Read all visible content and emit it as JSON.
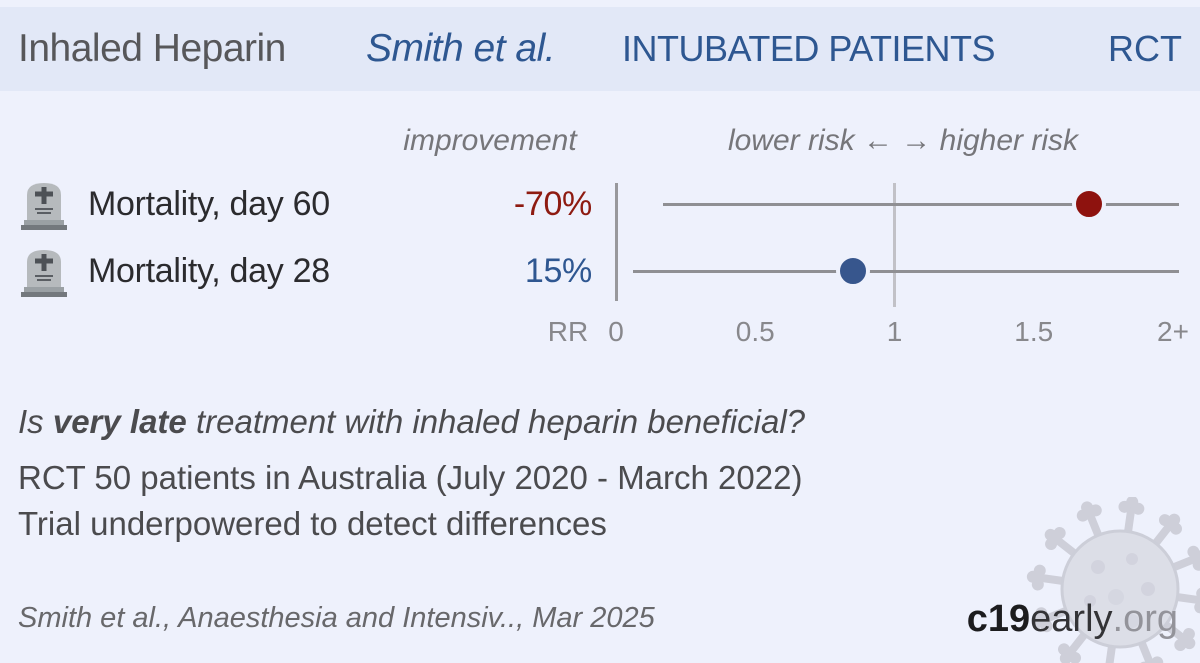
{
  "header": {
    "treatment": "Inhaled Heparin",
    "study": "Smith et al.",
    "population": "INTUBATED PATIENTS",
    "design": "RCT"
  },
  "columns": {
    "improvement": "improvement",
    "risk_direction": "lower risk ← → higher risk"
  },
  "axis": {
    "label": "RR",
    "ticks": [
      "0",
      "0.5",
      "1",
      "1.5",
      "2+"
    ]
  },
  "outcomes": [
    {
      "icon": "tombstone-icon",
      "label": "Mortality, day 60",
      "improvement": "-70%"
    },
    {
      "icon": "tombstone-icon",
      "label": "Mortality, day 28",
      "improvement": "15%"
    }
  ],
  "summary": {
    "question_prefix": "Is ",
    "question_bold": "very late",
    "question_suffix": " treatment with inhaled heparin beneficial?",
    "detail_1": "RCT 50 patients in Australia (July 2020 - March 2022)",
    "detail_2": "Trial underpowered to detect differences"
  },
  "footer": {
    "citation": "Smith et al., Anaesthesia and Intensiv.., Mar 2025",
    "brand_bold": "c19",
    "brand_regular": "early",
    "brand_suffix": ".org"
  },
  "colors": {
    "risk_increase": "#8e120e",
    "risk_decrease": "#37568d",
    "accent_blue": "#2e5791",
    "header_bg": "#e2e8f7",
    "page_bg": "#eef1fc"
  },
  "chart_data": {
    "type": "scatter",
    "subtype": "forest-plot",
    "title": "Inhaled Heparin — Smith et al. — INTUBATED PATIENTS — RCT",
    "categories": [
      "Mortality, day 60",
      "Mortality, day 28"
    ],
    "series": [
      {
        "name": "Relative Risk",
        "values": [
          1.7,
          0.85
        ]
      }
    ],
    "improvement_values": [
      "-70%",
      "15%"
    ],
    "ci_low": [
      0.17,
      0.06
    ],
    "ci_high": [
      "2+",
      "2+"
    ],
    "point_colors": [
      "#8e120e",
      "#37568d"
    ],
    "reference_line": 1.0,
    "xlabel": "RR",
    "xlim": [
      0,
      2
    ],
    "tick_values": [
      0,
      0.5,
      1,
      1.5,
      2
    ],
    "annotation": "lower risk ← → higher risk",
    "legend": "none",
    "grid": false
  }
}
